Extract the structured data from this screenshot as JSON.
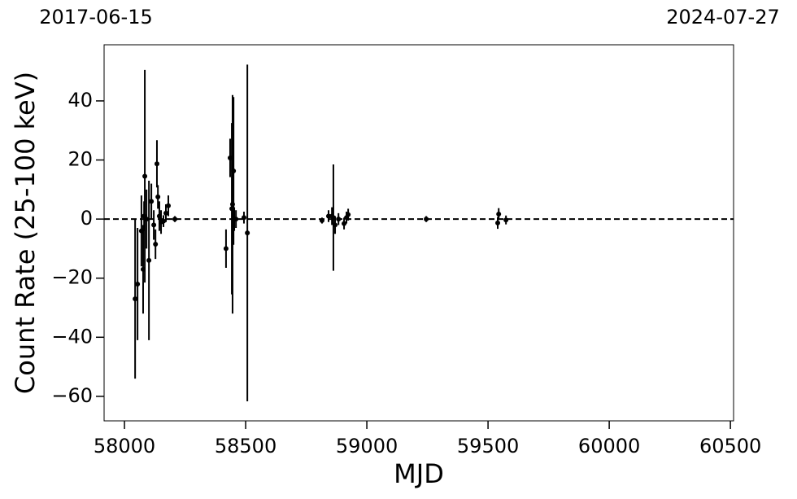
{
  "chart_data": {
    "type": "errorbar",
    "date_start": "2017-06-15",
    "date_end": "2024-07-27",
    "x_label": "MJD",
    "y_label": "Count Rate (25-100 keV)",
    "xlim": [
      57916,
      60513
    ],
    "ylim": [
      -68.3,
      59
    ],
    "xticks": [
      58000,
      58500,
      59000,
      59500,
      60000,
      60500
    ],
    "yticks": [
      {
        "value": -60,
        "label": "−60"
      },
      {
        "value": -40,
        "label": "−40"
      },
      {
        "value": -20,
        "label": "−20"
      },
      0,
      20,
      40
    ],
    "hline": 0,
    "color": "#000000",
    "series": [
      {
        "x": [
          58044,
          58054,
          58070,
          58077,
          58081,
          58084,
          58091,
          58101,
          58111,
          58121,
          58128,
          58134,
          58138,
          58144,
          58151,
          58161,
          58171,
          58181,
          58208,
          58419,
          58436,
          58443,
          58446,
          58450,
          58453,
          58460,
          58493,
          58507,
          58815,
          58842,
          58856,
          58862,
          58869,
          58883,
          58906,
          58916,
          58923,
          59245,
          59540,
          59544,
          59574
        ],
        "values": [
          -27,
          -22,
          -4,
          -17,
          1,
          14.5,
          0,
          -14,
          6,
          -2,
          -8.5,
          18.7,
          7.5,
          1,
          -1,
          -0.7,
          2,
          4.5,
          0,
          -10,
          20.7,
          3.5,
          5,
          16.3,
          0,
          0,
          0.5,
          -4.7,
          -0.5,
          1,
          1,
          0.5,
          -2,
          0,
          -1.5,
          0.5,
          1.5,
          0,
          -1.3,
          1.7,
          -0.3
        ],
        "errors": [
          27,
          19,
          12,
          15,
          5,
          36,
          10,
          27,
          6,
          5,
          5,
          8,
          4,
          5,
          4,
          2,
          3,
          3.5,
          1,
          6.5,
          6.5,
          29,
          37,
          25,
          4,
          3,
          2,
          57,
          1,
          2,
          3,
          18,
          3,
          2,
          2,
          2,
          2,
          1,
          2,
          2,
          1.5
        ]
      }
    ]
  }
}
